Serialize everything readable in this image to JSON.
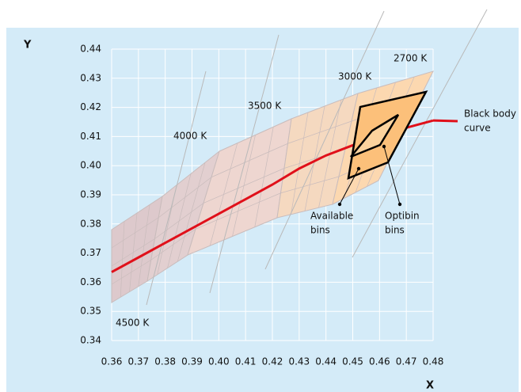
{
  "chart_data": {
    "type": "line",
    "y_label": "Y",
    "x_label": "X",
    "x": [
      0.36,
      0.37,
      0.38,
      0.39,
      0.4,
      0.41,
      0.42,
      0.43,
      0.44,
      0.45,
      0.46,
      0.47,
      0.48
    ],
    "series": [
      {
        "name": [
          "Black body",
          "curve"
        ],
        "color": "#e0101a",
        "values": [
          0.3635,
          0.3685,
          0.3735,
          0.3785,
          0.3835,
          0.3885,
          0.3935,
          0.399,
          0.4035,
          0.407,
          0.41,
          0.413,
          0.4155
        ]
      }
    ],
    "xlim": [
      0.36,
      0.48
    ],
    "ylim": [
      0.34,
      0.44
    ],
    "xticks": [
      0.36,
      0.37,
      0.38,
      0.39,
      {
        "value": 0.4,
        "label": "0.40"
      },
      0.41,
      0.42,
      0.43,
      0.44,
      0.45,
      0.46,
      0.47,
      0.48
    ],
    "yticks": [
      0.34,
      0.35,
      0.36,
      0.37,
      0.38,
      0.39,
      {
        "value": 0.4,
        "label": "0.40"
      },
      0.41,
      0.42,
      0.43,
      0.44
    ],
    "grid": true,
    "region_labels": [
      "4500 K",
      "4000 K",
      "3500 K",
      "3000 K",
      "2700 K"
    ],
    "annotations": [
      [
        "Available",
        "bins"
      ],
      [
        "Optibin",
        "bins"
      ]
    ]
  }
}
